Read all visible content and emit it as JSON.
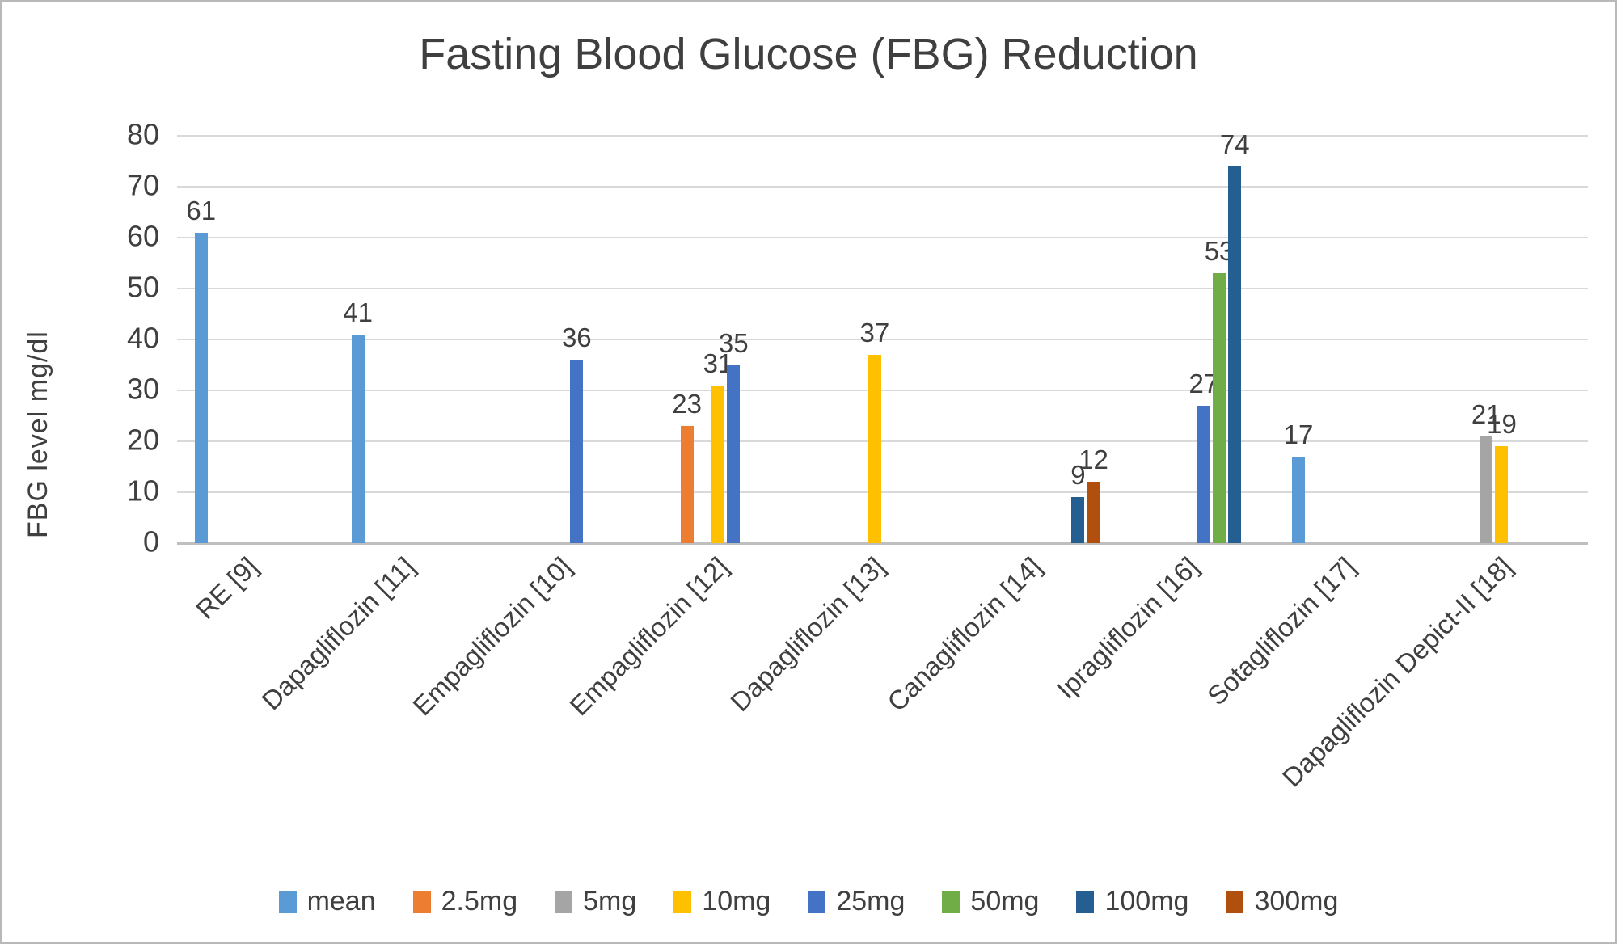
{
  "chart_data": {
    "type": "bar",
    "title": "Fasting Blood Glucose (FBG) Reduction",
    "ylabel": "FBG level mg/dl",
    "xlabel": "",
    "ylim": [
      0,
      80
    ],
    "ytick_step": 10,
    "grid": true,
    "legend_position": "bottom",
    "text_color": "#3f3f3f",
    "gridline_color": "#d9d9d9",
    "axis_line_color": "#bfbfbf",
    "categories": [
      "RE [9]",
      "Dapagliflozin [11]",
      "Empagliflozin [10]",
      "Empagliflozin [12]",
      "Dapagliflozin [13]",
      "Canagliflozin [14]",
      "Ipragliflozin [16]",
      "Sotagliflozin [17]",
      "Dapagliflozin Depict-II [18]"
    ],
    "series": [
      {
        "name": "mean",
        "color": "#5B9BD5",
        "values": [
          61,
          41,
          null,
          null,
          null,
          null,
          null,
          17,
          null
        ]
      },
      {
        "name": "2.5mg",
        "color": "#ED7D31",
        "values": [
          null,
          null,
          null,
          23,
          null,
          null,
          null,
          null,
          null
        ]
      },
      {
        "name": "5mg",
        "color": "#A5A5A5",
        "values": [
          null,
          null,
          null,
          null,
          null,
          null,
          null,
          null,
          21
        ]
      },
      {
        "name": "10mg",
        "color": "#FFC000",
        "values": [
          null,
          null,
          null,
          31,
          37,
          null,
          null,
          null,
          19
        ]
      },
      {
        "name": "25mg",
        "color": "#4472C4",
        "values": [
          null,
          null,
          36,
          35,
          null,
          null,
          27,
          null,
          null
        ]
      },
      {
        "name": "50mg",
        "color": "#70AD47",
        "values": [
          null,
          null,
          null,
          null,
          null,
          null,
          53,
          null,
          null
        ]
      },
      {
        "name": "100mg",
        "color": "#255E91",
        "values": [
          null,
          null,
          null,
          null,
          null,
          9,
          74,
          null,
          null
        ]
      },
      {
        "name": "300mg",
        "color": "#B04F0E",
        "values": [
          null,
          null,
          null,
          null,
          null,
          12,
          null,
          null,
          null
        ]
      }
    ]
  }
}
